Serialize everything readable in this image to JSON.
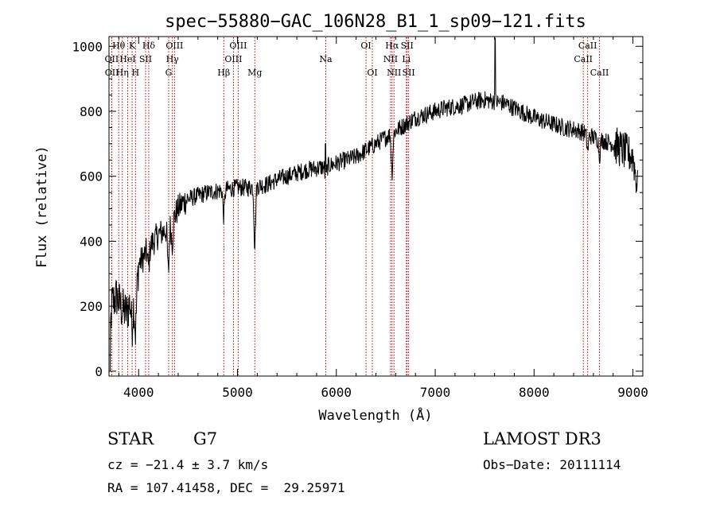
{
  "chart_data": {
    "type": "line",
    "title": "spec−55880−GAC_106N28_B1_1_sp09−121.fits",
    "xlabel": "Wavelength (Å)",
    "ylabel": "Flux (relative)",
    "xlim": [
      3700,
      9100
    ],
    "ylim": [
      -15,
      1030
    ],
    "xticks": [
      4000,
      5000,
      6000,
      7000,
      8000,
      9000
    ],
    "yticks": [
      0,
      200,
      400,
      600,
      800,
      1000
    ],
    "line_color": "#000000",
    "marker_color": "#c00000",
    "continuum": [
      [
        3700,
        50
      ],
      [
        3730,
        210
      ],
      [
        3780,
        230
      ],
      [
        3830,
        190
      ],
      [
        3880,
        180
      ],
      [
        3930,
        230
      ],
      [
        3970,
        210
      ],
      [
        4000,
        330
      ],
      [
        4050,
        350
      ],
      [
        4100,
        380
      ],
      [
        4150,
        400
      ],
      [
        4200,
        420
      ],
      [
        4250,
        430
      ],
      [
        4300,
        440
      ],
      [
        4350,
        470
      ],
      [
        4400,
        500
      ],
      [
        4450,
        520
      ],
      [
        4500,
        530
      ],
      [
        4600,
        540
      ],
      [
        4700,
        550
      ],
      [
        4800,
        555
      ],
      [
        4900,
        560
      ],
      [
        5000,
        565
      ],
      [
        5100,
        565
      ],
      [
        5200,
        570
      ],
      [
        5300,
        575
      ],
      [
        5400,
        590
      ],
      [
        5500,
        600
      ],
      [
        5600,
        610
      ],
      [
        5700,
        620
      ],
      [
        5800,
        625
      ],
      [
        5900,
        630
      ],
      [
        6000,
        640
      ],
      [
        6100,
        650
      ],
      [
        6200,
        660
      ],
      [
        6300,
        680
      ],
      [
        6400,
        700
      ],
      [
        6500,
        720
      ],
      [
        6600,
        740
      ],
      [
        6700,
        760
      ],
      [
        6800,
        780
      ],
      [
        6900,
        790
      ],
      [
        7000,
        800
      ],
      [
        7100,
        810
      ],
      [
        7200,
        815
      ],
      [
        7300,
        820
      ],
      [
        7400,
        830
      ],
      [
        7500,
        835
      ],
      [
        7600,
        830
      ],
      [
        7700,
        825
      ],
      [
        7800,
        810
      ],
      [
        7900,
        795
      ],
      [
        8000,
        780
      ],
      [
        8100,
        770
      ],
      [
        8200,
        760
      ],
      [
        8300,
        750
      ],
      [
        8400,
        745
      ],
      [
        8500,
        735
      ],
      [
        8600,
        720
      ],
      [
        8700,
        710
      ],
      [
        8800,
        700
      ],
      [
        8900,
        680
      ],
      [
        9000,
        660
      ],
      [
        9050,
        560
      ]
    ],
    "absorption_lines": [
      {
        "wavelength": 3933,
        "depth": 90
      },
      {
        "wavelength": 3968,
        "depth": 90
      },
      {
        "wavelength": 4101,
        "depth": 60
      },
      {
        "wavelength": 4300,
        "depth": 140
      },
      {
        "wavelength": 4340,
        "depth": 70
      },
      {
        "wavelength": 4861,
        "depth": 80
      },
      {
        "wavelength": 5175,
        "depth": 180
      },
      {
        "wavelength": 5893,
        "depth": 40
      },
      {
        "wavelength": 6563,
        "depth": 120
      },
      {
        "wavelength": 8542,
        "depth": 50
      },
      {
        "wavelength": 8662,
        "depth": 50
      }
    ],
    "emission_spikes": [
      {
        "wavelength": 7605,
        "peak": 1025
      },
      {
        "wavelength": 5890,
        "peak": 700
      }
    ],
    "line_markers": [
      {
        "label": "Hθ",
        "wavelength": 3798,
        "row": 0
      },
      {
        "label": "OII",
        "wavelength": 3727,
        "row": 1
      },
      {
        "label": "OII",
        "wavelength": 3729,
        "row": 2
      },
      {
        "label": "Hη",
        "wavelength": 3835,
        "row": 2
      },
      {
        "label": "HeI",
        "wavelength": 3889,
        "row": 1
      },
      {
        "label": "K",
        "wavelength": 3934,
        "row": 0
      },
      {
        "label": "SII",
        "wavelength": 4070,
        "row": 1
      },
      {
        "label": "H",
        "wavelength": 3968,
        "row": 2
      },
      {
        "label": "Hδ",
        "wavelength": 4102,
        "row": 0
      },
      {
        "label": "OIII",
        "wavelength": 4363,
        "row": 0
      },
      {
        "label": "Hγ",
        "wavelength": 4341,
        "row": 1
      },
      {
        "label": "G",
        "wavelength": 4304,
        "row": 2
      },
      {
        "label": "OIII",
        "wavelength": 5007,
        "row": 0
      },
      {
        "label": "OIII",
        "wavelength": 4959,
        "row": 1
      },
      {
        "label": "Hβ",
        "wavelength": 4861,
        "row": 2
      },
      {
        "label": "Mg",
        "wavelength": 5175,
        "row": 2
      },
      {
        "label": "Na",
        "wavelength": 5893,
        "row": 1
      },
      {
        "label": "OI",
        "wavelength": 6300,
        "row": 0
      },
      {
        "label": "OI",
        "wavelength": 6364,
        "row": 2
      },
      {
        "label": "Hα",
        "wavelength": 6563,
        "row": 0
      },
      {
        "label": "SII",
        "wavelength": 6716,
        "row": 0
      },
      {
        "label": "NII",
        "wavelength": 6548,
        "row": 1
      },
      {
        "label": "Li",
        "wavelength": 6708,
        "row": 1
      },
      {
        "label": "NII",
        "wavelength": 6583,
        "row": 2
      },
      {
        "label": "SII",
        "wavelength": 6731,
        "row": 2
      },
      {
        "label": "CaII",
        "wavelength": 8542,
        "row": 0
      },
      {
        "label": "CaII",
        "wavelength": 8498,
        "row": 1
      },
      {
        "label": "CaII",
        "wavelength": 8662,
        "row": 2
      }
    ]
  },
  "info": {
    "object_class": "STAR",
    "subclass": "G7",
    "survey": "LAMOST DR3",
    "cz_line": "cz = −21.4 ± 3.7 km/s",
    "obs_date_line": "Obs−Date: 20111114",
    "coords_line": "RA = 107.41458, DEC =  29.25971"
  }
}
